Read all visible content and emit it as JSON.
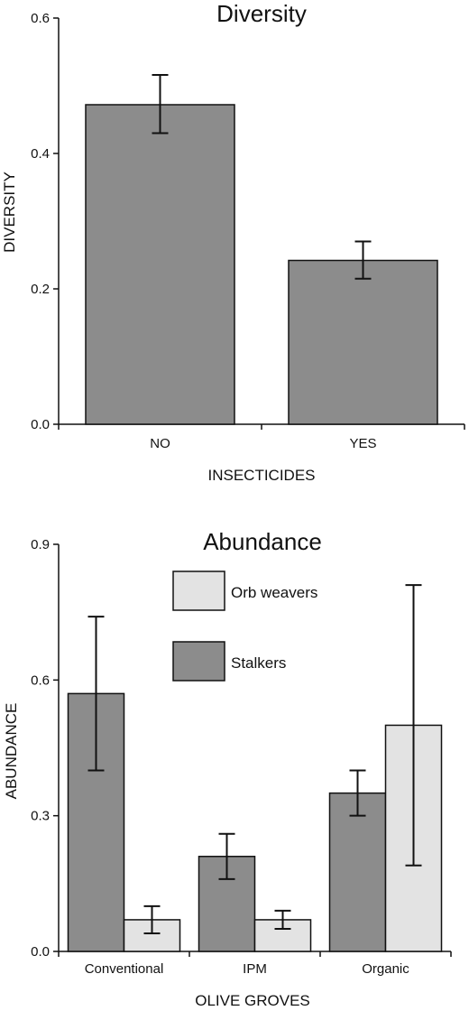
{
  "chart_data": [
    {
      "type": "bar",
      "title": "Diversity",
      "xlabel": "INSECTICIDES",
      "ylabel": "DIVERSITY",
      "categories": [
        "NO",
        "YES"
      ],
      "values": [
        0.472,
        0.242
      ],
      "error_bars": [
        [
          0.43,
          0.516
        ],
        [
          0.215,
          0.27
        ]
      ],
      "ylim": [
        0,
        0.6
      ],
      "yticks": [
        0,
        0.2,
        0.4,
        0.6
      ],
      "ytick_labels": [
        "0.0",
        "0.2",
        "0.4",
        "0.6"
      ],
      "grid": false,
      "colors": {
        "bar": "#8c8c8c"
      }
    },
    {
      "type": "bar",
      "title": "Abundance",
      "xlabel": "OLIVE GROVES",
      "ylabel": "ABUNDANCE",
      "categories": [
        "Conventional",
        "IPM",
        "Organic"
      ],
      "series": [
        {
          "name": "Stalkers",
          "values": [
            0.57,
            0.21,
            0.35
          ],
          "error_bars": [
            [
              0.4,
              0.74
            ],
            [
              0.16,
              0.26
            ],
            [
              0.3,
              0.4
            ]
          ],
          "color": "#8c8c8c"
        },
        {
          "name": "Orb weavers",
          "values": [
            0.07,
            0.07,
            0.5
          ],
          "error_bars": [
            [
              0.04,
              0.1
            ],
            [
              0.05,
              0.09
            ],
            [
              0.19,
              0.81
            ]
          ],
          "color": "#e3e3e3"
        }
      ],
      "legend_order": [
        "Orb weavers",
        "Stalkers"
      ],
      "legend_placement": "top-center",
      "ylim": [
        0,
        0.9
      ],
      "yticks": [
        0,
        0.3,
        0.6,
        0.9
      ],
      "ytick_labels": [
        "0.0",
        "0.3",
        "0.6",
        "0.9"
      ],
      "grid": false
    }
  ]
}
